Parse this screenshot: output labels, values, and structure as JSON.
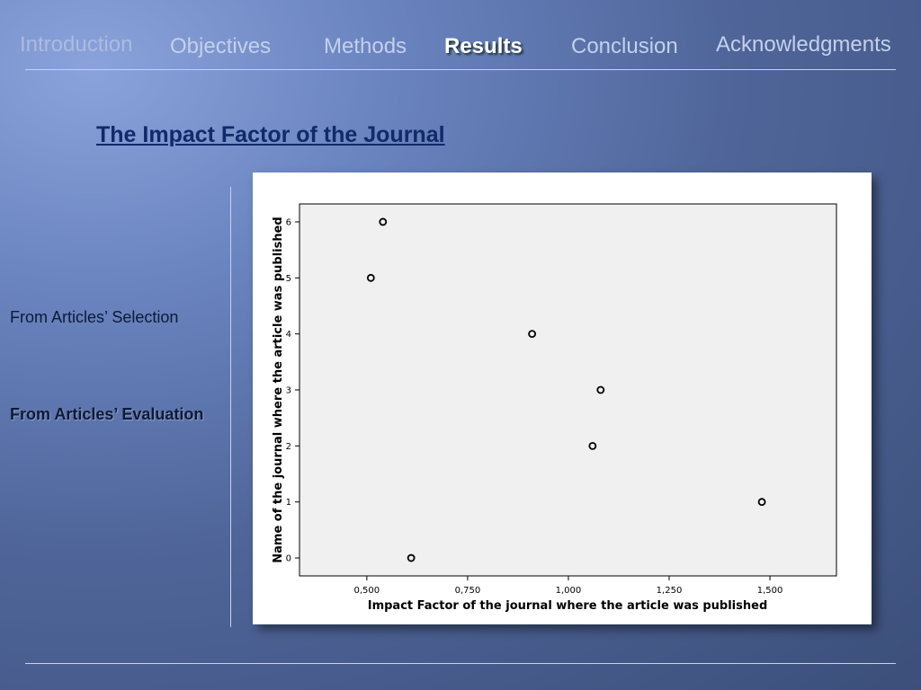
{
  "nav": [
    "Introduction",
    "Objectives",
    "Methods",
    "Results",
    "Conclusion",
    "Acknowledgments"
  ],
  "header": {
    "title": "The Impact Factor of the Journal"
  },
  "sidebar": {
    "items": [
      "From Articles’ Selection",
      "From Articles’ Evaluation"
    ]
  },
  "chart_data": {
    "type": "scatter",
    "x_label": "Impact Factor of the journal where the article was published",
    "y_label": "Name of the journal where the article was published",
    "x": [
      0.54,
      0.51,
      0.91,
      1.08,
      1.06,
      1.48,
      0.61
    ],
    "y": [
      6,
      5,
      4,
      3,
      2,
      1,
      0
    ],
    "color": "#000000",
    "xlim": [
      0.333,
      1.665
    ],
    "ylim": [
      -0.32,
      6.32
    ],
    "xticks": [
      {
        "value": 0.5,
        "label": "0,500"
      },
      {
        "value": 0.75,
        "label": "0,750"
      },
      {
        "value": 1.0,
        "label": "1,000"
      },
      {
        "value": 1.25,
        "label": "1,250"
      },
      {
        "value": 1.5,
        "label": "1,500"
      }
    ],
    "yticks": [
      0,
      1,
      2,
      3,
      4,
      5,
      6
    ]
  }
}
